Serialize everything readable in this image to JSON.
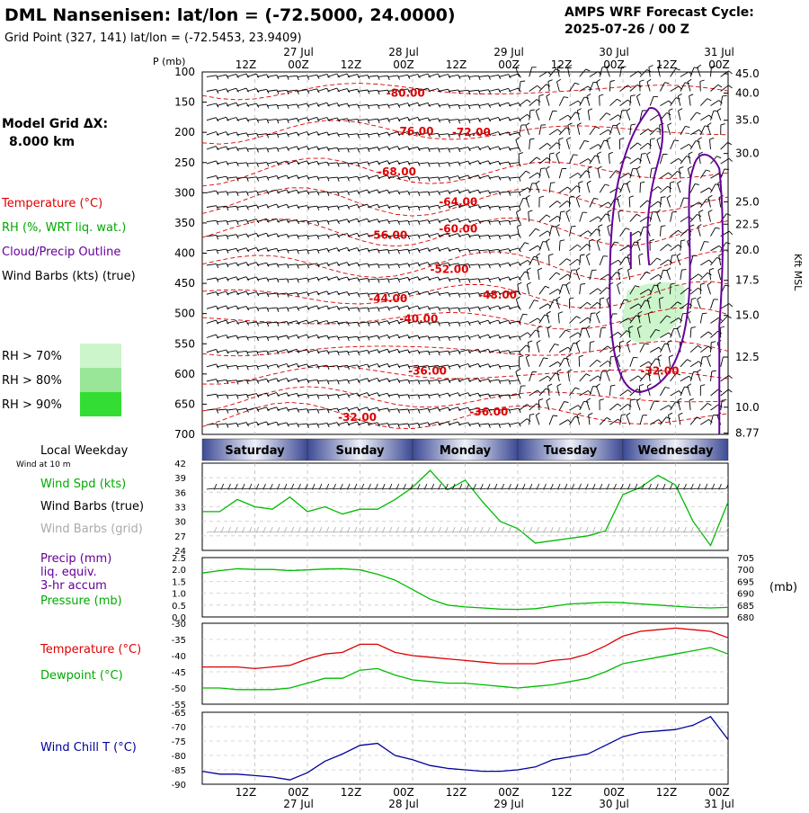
{
  "header": {
    "title": "DML Nansenisen:  lat/lon = (-72.5000, 24.0000)",
    "subtitle": "Grid Point (327, 141) lat/lon = (-72.5453, 23.9409)",
    "cycle_line1": "AMPS WRF Forecast Cycle:",
    "cycle_line2": "2025-07-26 / 00  Z"
  },
  "left_panel": {
    "grid_label_line1": "Model Grid ΔX:",
    "grid_label_line2": "8.000 km",
    "legend_temperature": "Temperature (°C)",
    "legend_rh": "RH (%, WRT liq. wat.)",
    "legend_cloud": "Cloud/Precip Outline",
    "legend_wind": "Wind Barbs (kts) (true)",
    "rh_70": "RH > 70%",
    "rh_80": "RH > 80%",
    "rh_90": "RH > 90%",
    "weekday_title": "Local Weekday",
    "wind_10m_note": "Wind at 10 m",
    "wind_spd": "Wind Spd (kts)",
    "wind_barbs_true": "Wind Barbs (true)",
    "wind_barbs_grid": "Wind Barbs (grid)",
    "precip_line1": "Precip (mm)",
    "precip_line2": "liq. equiv.",
    "precip_line3": "3-hr accum",
    "pressure": "Pressure (mb)",
    "temperature": "Temperature (°C)",
    "dewpoint": "Dewpoint (°C)",
    "wind_chill": "Wind Chill T (°C)"
  },
  "colors": {
    "temperature": "#dd0000",
    "rh_green": "#00bb00",
    "cloud_outline": "#660099",
    "wind_barbs": "#000000",
    "wind_barbs_grid": "#aaaaaa",
    "wind_chill": "#000099",
    "rh70_fill": "#ccf5cc",
    "rh80_fill": "#99e699",
    "rh90_fill": "#33dd33",
    "weekday_bar": "#3d4a95"
  },
  "chart_data": {
    "type": "meteogram",
    "time_axis": {
      "top_hour_labels": [
        "12Z",
        "00Z",
        "12Z",
        "00Z",
        "12Z",
        "00Z",
        "12Z",
        "00Z",
        "12Z",
        "00Z"
      ],
      "top_date_labels": [
        "27 Jul",
        "28 Jul",
        "29 Jul",
        "30 Jul",
        "31 Jul"
      ],
      "bottom_hour_labels": [
        "12Z",
        "00Z",
        "12Z",
        "00Z",
        "12Z",
        "00Z",
        "12Z",
        "00Z",
        "12Z",
        "00Z"
      ],
      "bottom_date_labels": [
        "27 Jul",
        "28 Jul",
        "29 Jul",
        "30 Jul",
        "31 Jul"
      ],
      "forecast_hours_range": [
        0,
        120
      ],
      "hour_tick_positions": [
        12,
        24,
        36,
        48,
        60,
        72,
        84,
        96,
        108,
        120
      ]
    },
    "weekdays": [
      "Saturday",
      "Sunday",
      "Monday",
      "Tuesday",
      "Wednesday"
    ],
    "cross_section": {
      "ylabel_left": "P (mb)",
      "ylabel_right": "Kft MSL",
      "pressure_ticks": [
        "100",
        "150",
        "200",
        "250",
        "300",
        "350",
        "400",
        "450",
        "500",
        "550",
        "600",
        "650",
        "700"
      ],
      "pressure_values": [
        100,
        150,
        200,
        250,
        300,
        350,
        400,
        450,
        500,
        550,
        600,
        650,
        700
      ],
      "height_labels": [
        "45.0",
        "40.0",
        "35.0",
        "30.0",
        "25.0",
        "22.5",
        "20.0",
        "17.5",
        "15.0",
        "12.5",
        "10.0",
        "8.77"
      ],
      "height_label_pressures": [
        103,
        135,
        180,
        235,
        315,
        352,
        395,
        445,
        503,
        572,
        655,
        698
      ],
      "temperature_labels": [
        {
          "text": "-80.00",
          "hour": 42,
          "p": 135
        },
        {
          "text": "-76.00",
          "hour": 44,
          "p": 198
        },
        {
          "text": "-72.00",
          "hour": 57,
          "p": 200
        },
        {
          "text": "-68.00",
          "hour": 40,
          "p": 265
        },
        {
          "text": "-64.00",
          "hour": 54,
          "p": 315
        },
        {
          "text": "-60.00",
          "hour": 54,
          "p": 360
        },
        {
          "text": "-56.00",
          "hour": 38,
          "p": 370
        },
        {
          "text": "-52.00",
          "hour": 52,
          "p": 427
        },
        {
          "text": "-48.00",
          "hour": 63,
          "p": 469
        },
        {
          "text": "-44.00",
          "hour": 38,
          "p": 475
        },
        {
          "text": "-40.00",
          "hour": 45,
          "p": 509
        },
        {
          "text": "-36.00",
          "hour": 47,
          "p": 595
        },
        {
          "text": "-32.00",
          "hour": 100,
          "p": 595
        },
        {
          "text": "-36.00",
          "hour": 61,
          "p": 663
        },
        {
          "text": "-32.00",
          "hour": 31,
          "p": 672
        }
      ]
    },
    "surface_wind": {
      "yticks": [
        24,
        27,
        30,
        33,
        36,
        39,
        42
      ],
      "ylim": [
        24,
        42
      ],
      "hours": [
        0,
        4,
        8,
        12,
        16,
        20,
        24,
        28,
        32,
        36,
        40,
        44,
        48,
        52,
        56,
        60,
        64,
        68,
        72,
        76,
        80,
        84,
        88,
        92,
        96,
        100,
        104,
        108,
        112,
        116,
        120
      ],
      "wind_speed": [
        32,
        32,
        34.5,
        33,
        32.5,
        35,
        32,
        33,
        31.5,
        32.5,
        32.5,
        34.5,
        37,
        40.5,
        36.5,
        38.5,
        34,
        30,
        28.5,
        25.5,
        26,
        26.5,
        27,
        28,
        35.5,
        37,
        39.5,
        37.5,
        30,
        25,
        34
      ]
    },
    "precip_pressure": {
      "precip_yticks": [
        "0.0",
        "0.5",
        "1.0",
        "1.5",
        "2.0",
        "2.5"
      ],
      "precip_ylim": [
        0,
        2.5
      ],
      "pressure_yticks": [
        "680",
        "685",
        "690",
        "695",
        "700",
        "705"
      ],
      "pressure_ylim": [
        680,
        705
      ],
      "pressure_unit": "(mb)",
      "hours": [
        0,
        4,
        8,
        12,
        16,
        20,
        24,
        28,
        32,
        36,
        40,
        44,
        48,
        52,
        56,
        60,
        64,
        68,
        72,
        76,
        80,
        84,
        88,
        92,
        96,
        100,
        104,
        108,
        112,
        116,
        120
      ],
      "pressure": [
        698.5,
        699.5,
        700.3,
        700,
        700,
        699.5,
        699.8,
        700.2,
        700.3,
        699.8,
        698,
        695.5,
        691.5,
        687.5,
        685,
        684.2,
        683.8,
        683.3,
        683.2,
        683.5,
        684.5,
        685.5,
        685.8,
        686.2,
        686,
        685.5,
        685,
        684.5,
        684,
        683.8,
        684
      ]
    },
    "temperature_dewpoint": {
      "yticks": [
        "-30",
        "-35",
        "-40",
        "-45",
        "-50",
        "-55"
      ],
      "ylim": [
        -55,
        -30
      ],
      "hours": [
        0,
        4,
        8,
        12,
        16,
        20,
        24,
        28,
        32,
        36,
        40,
        44,
        48,
        52,
        56,
        60,
        64,
        68,
        72,
        76,
        80,
        84,
        88,
        92,
        96,
        100,
        104,
        108,
        112,
        116,
        120
      ],
      "temperature": [
        -43.5,
        -43.5,
        -43.5,
        -44,
        -43.5,
        -43,
        -41,
        -39.5,
        -39,
        -36.5,
        -36.5,
        -39,
        -40,
        -40.5,
        -41,
        -41.5,
        -42,
        -42.5,
        -42.5,
        -42.5,
        -41.5,
        -41,
        -39.5,
        -37,
        -34,
        -32.5,
        -32,
        -31.5,
        -32,
        -32.5,
        -34.5
      ],
      "dewpoint": [
        -50,
        -50,
        -50.5,
        -50.5,
        -50.5,
        -50,
        -48.5,
        -47,
        -47,
        -44.5,
        -44,
        -46,
        -47.5,
        -48,
        -48.5,
        -48.5,
        -49,
        -49.5,
        -50,
        -49.5,
        -49,
        -48,
        -47,
        -45,
        -42.5,
        -41.5,
        -40.5,
        -39.5,
        -38.5,
        -37.5,
        -39.5
      ]
    },
    "wind_chill": {
      "yticks": [
        "-65",
        "-70",
        "-75",
        "-80",
        "-85",
        "-90"
      ],
      "ylim": [
        -90,
        -65
      ],
      "hours": [
        0,
        4,
        8,
        12,
        16,
        20,
        24,
        28,
        32,
        36,
        40,
        44,
        48,
        52,
        56,
        60,
        64,
        68,
        72,
        76,
        80,
        84,
        88,
        92,
        96,
        100,
        104,
        108,
        112,
        116,
        120
      ],
      "wind_chill": [
        -85.5,
        -86.5,
        -86.5,
        -87,
        -87.5,
        -88.5,
        -86,
        -82,
        -79.5,
        -76.5,
        -75.8,
        -80,
        -81.5,
        -83.5,
        -84.5,
        -85,
        -85.5,
        -85.5,
        -85,
        -84,
        -81.5,
        -80.5,
        -79.5,
        -76.5,
        -73.5,
        -72,
        -71.5,
        -71,
        -69.5,
        -66.5,
        -74.5
      ]
    }
  }
}
